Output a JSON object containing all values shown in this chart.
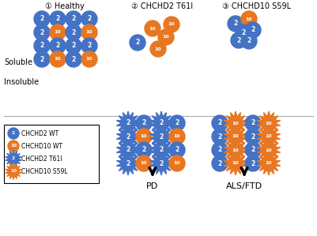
{
  "title_healthy": "① Healthy",
  "title_chchd2": "② CHCHD2 T61I",
  "title_chchd10": "③ CHCHD10 S59L",
  "label_soluble": "Soluble",
  "label_insoluble": "Insoluble",
  "blue_color": "#4472C4",
  "orange_color": "#E87722",
  "legend_items": [
    {
      "label": "CHCHD2 WT",
      "type": "blue_circle",
      "num": "2"
    },
    {
      "label": "CHCHD10 WT",
      "type": "orange_circle",
      "num": "10"
    },
    {
      "label": "CHCHD2 T61I",
      "type": "blue_burst",
      "num": "2"
    },
    {
      "label": "CHCHD10 S59L",
      "type": "orange_burst",
      "num": "10"
    }
  ],
  "arrow_pd": "PD",
  "arrow_als": "ALS/FTD",
  "fig_width": 4.01,
  "fig_height": 2.99,
  "dpi": 100
}
